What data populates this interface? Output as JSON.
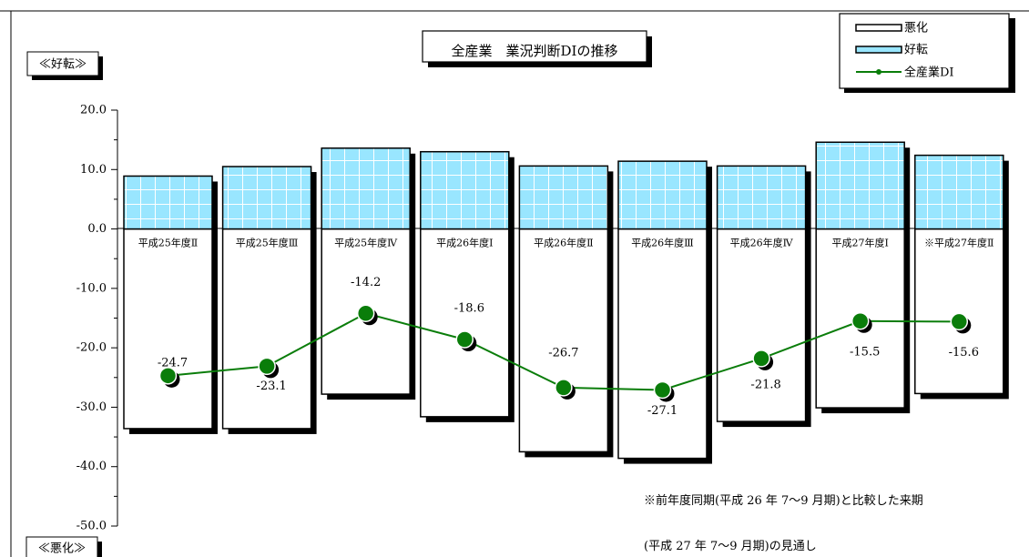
{
  "chart_data": {
    "type": "bar",
    "title": "全産業　業況判断DIの推移",
    "categories": [
      "平成25年度Ⅱ",
      "平成25年度Ⅲ",
      "平成25年度Ⅳ",
      "平成26年度Ⅰ",
      "平成26年度Ⅱ",
      "平成26年度Ⅲ",
      "平成26年度Ⅳ",
      "平成27年度Ⅰ",
      "※平成27年度Ⅱ"
    ],
    "series": [
      {
        "name": "悪化",
        "kind": "bar",
        "values": [
          -33.6,
          -33.6,
          -27.8,
          -31.6,
          -37.5,
          -38.6,
          -32.4,
          -30.1,
          -27.7
        ],
        "fill": "#ffffff"
      },
      {
        "name": "好転",
        "kind": "bar",
        "values": [
          8.9,
          10.5,
          13.6,
          13.0,
          10.6,
          11.4,
          10.6,
          14.6,
          12.4
        ],
        "fill": "#99e6ff",
        "pattern": "grid"
      },
      {
        "name": "全産業DI",
        "kind": "line",
        "values": [
          -24.7,
          -23.1,
          -14.2,
          -18.6,
          -26.7,
          -27.1,
          -21.8,
          -15.5,
          -15.6
        ],
        "color": "#0a7d0a"
      }
    ],
    "data_labels": [
      "-24.7",
      "-23.1",
      "-14.2",
      "-18.6",
      "-26.7",
      "-27.1",
      "-21.8",
      "-15.5",
      "-15.6"
    ],
    "yticks": [
      "20.0",
      "10.0",
      "0.0",
      "-10.0",
      "-20.0",
      "-30.0",
      "-40.0",
      "-50.0"
    ],
    "ylim": [
      -50,
      20
    ],
    "legend": {
      "position": "top-right",
      "items": [
        "悪化",
        "好転",
        "全産業DI"
      ]
    },
    "upper_label": "≪好転≫",
    "lower_label": "≪悪化≫",
    "notes": [
      "※前年度同期(平成 26 年 7～9 月期)と比較した来期",
      "(平成 27 年 7～9 月期)の見通し"
    ]
  }
}
